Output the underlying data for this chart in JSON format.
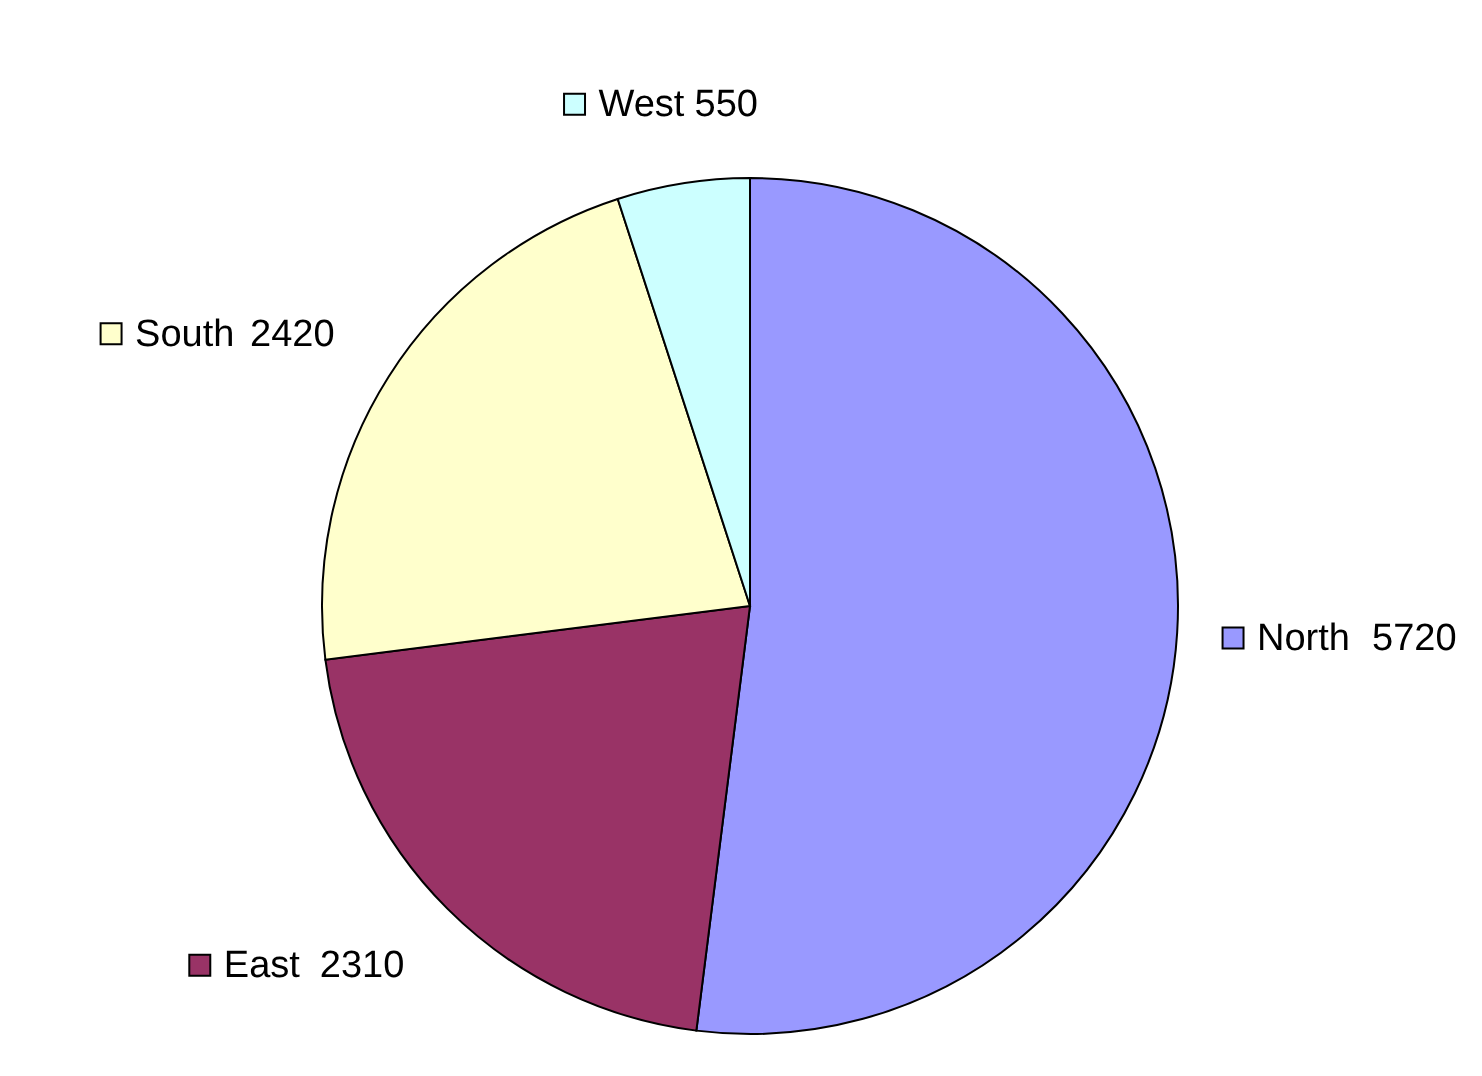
{
  "chart_data": {
    "type": "pie",
    "categories": [
      "North",
      "East",
      "South",
      "West"
    ],
    "values": [
      5720,
      2310,
      2420,
      550
    ],
    "colors": [
      "#9999ff",
      "#993366",
      "#ffffcc",
      "#ccffff"
    ],
    "data_labels": true,
    "legend": "right"
  }
}
